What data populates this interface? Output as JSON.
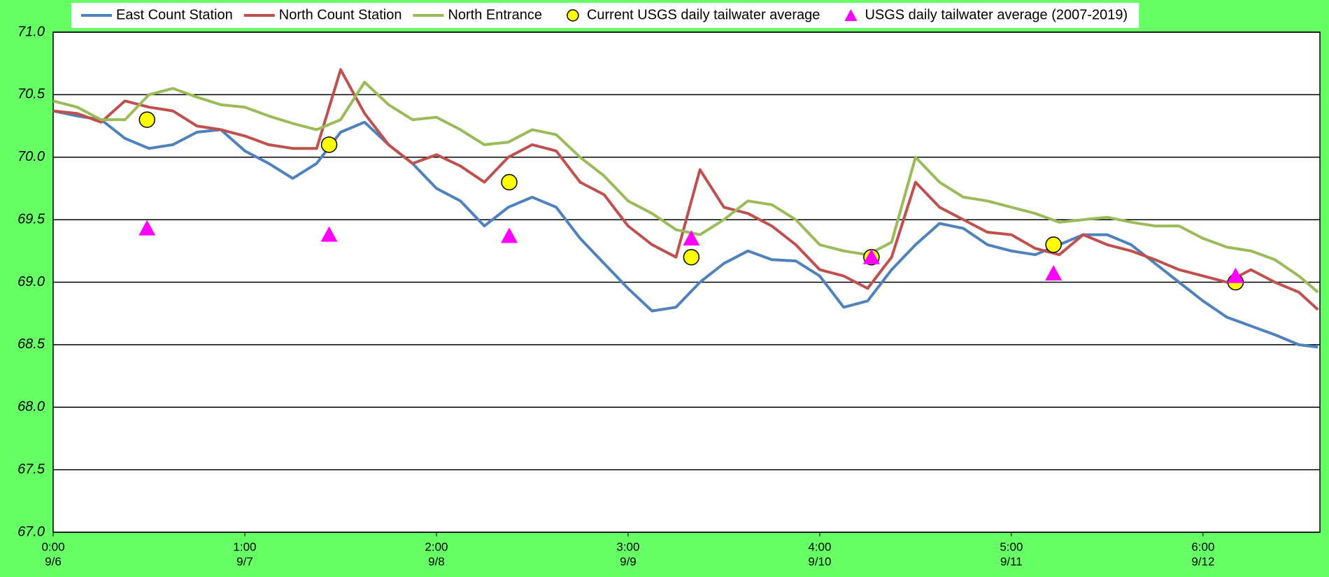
{
  "chart_data": {
    "type": "line",
    "x": [
      0,
      0.125,
      0.25,
      0.375,
      0.5,
      0.625,
      0.75,
      0.875,
      1,
      1.125,
      1.25,
      1.375,
      1.5,
      1.625,
      1.75,
      1.875,
      2,
      2.125,
      2.25,
      2.375,
      2.5,
      2.625,
      2.75,
      2.875,
      3,
      3.125,
      3.25,
      3.375,
      3.5,
      3.625,
      3.75,
      3.875,
      4,
      4.125,
      4.25,
      4.375,
      4.5,
      4.625,
      4.75,
      4.875,
      5,
      5.125,
      5.25,
      5.375,
      5.5,
      5.625,
      5.75,
      5.875,
      6,
      6.125,
      6.25,
      6.375,
      6.5,
      6.6
    ],
    "series": [
      {
        "name": "East Count Station",
        "color": "#4f81bd",
        "values": [
          70.37,
          70.33,
          70.3,
          70.15,
          70.07,
          70.1,
          70.2,
          70.22,
          70.05,
          69.95,
          69.83,
          69.95,
          70.2,
          70.28,
          70.1,
          69.95,
          69.75,
          69.65,
          69.45,
          69.6,
          69.68,
          69.6,
          69.35,
          69.15,
          68.95,
          68.77,
          68.8,
          69.0,
          69.15,
          69.25,
          69.18,
          69.17,
          69.05,
          68.8,
          68.85,
          69.1,
          69.3,
          69.47,
          69.43,
          69.3,
          69.25,
          69.22,
          69.3,
          69.38,
          69.38,
          69.3,
          69.15,
          69.0,
          68.85,
          68.72,
          68.65,
          68.58,
          68.5,
          68.48
        ]
      },
      {
        "name": "North Count Station",
        "color": "#c0504d",
        "values": [
          70.37,
          70.35,
          70.28,
          70.45,
          70.4,
          70.37,
          70.25,
          70.22,
          70.17,
          70.1,
          70.07,
          70.07,
          70.7,
          70.35,
          70.1,
          69.95,
          70.02,
          69.93,
          69.8,
          70.0,
          70.1,
          70.05,
          69.8,
          69.7,
          69.45,
          69.3,
          69.2,
          69.9,
          69.6,
          69.55,
          69.45,
          69.3,
          69.1,
          69.05,
          68.95,
          69.2,
          69.8,
          69.6,
          69.5,
          69.4,
          69.38,
          69.27,
          69.22,
          69.38,
          69.3,
          69.25,
          69.18,
          69.1,
          69.05,
          69.0,
          69.1,
          69.0,
          68.92,
          68.78
        ]
      },
      {
        "name": "North Entrance",
        "color": "#9bbb59",
        "values": [
          70.45,
          70.4,
          70.3,
          70.3,
          70.5,
          70.55,
          70.48,
          70.42,
          70.4,
          70.33,
          70.27,
          70.22,
          70.3,
          70.6,
          70.42,
          70.3,
          70.32,
          70.22,
          70.1,
          70.12,
          70.22,
          70.18,
          70.0,
          69.85,
          69.65,
          69.55,
          69.42,
          69.38,
          69.5,
          69.65,
          69.62,
          69.5,
          69.3,
          69.25,
          69.22,
          69.32,
          70.0,
          69.8,
          69.68,
          69.65,
          69.6,
          69.55,
          69.48,
          69.5,
          69.52,
          69.48,
          69.45,
          69.45,
          69.35,
          69.28,
          69.25,
          69.18,
          69.05,
          68.92
        ]
      },
      {
        "name": "Current USGS daily tailwater average",
        "type": "scatter",
        "marker": "circle",
        "color": "#ffff00",
        "x": [
          0.49,
          1.44,
          2.38,
          3.33,
          4.27,
          5.22,
          6.17
        ],
        "values": [
          70.3,
          70.1,
          69.8,
          69.2,
          69.2,
          69.3,
          69.0
        ]
      },
      {
        "name": "USGS daily tailwater average (2007-2019)",
        "type": "scatter",
        "marker": "triangle",
        "color": "#ff00ff",
        "x": [
          0.49,
          1.44,
          2.38,
          3.33,
          4.27,
          5.22,
          6.17
        ],
        "values": [
          69.43,
          69.38,
          69.37,
          69.35,
          69.2,
          69.07,
          69.05
        ]
      }
    ],
    "xlim": [
      0,
      6.61
    ],
    "xticks": [
      {
        "value": 0,
        "label": [
          "0:00",
          "9/6"
        ]
      },
      {
        "value": 1,
        "label": [
          "1:00",
          "9/7"
        ]
      },
      {
        "value": 2,
        "label": [
          "2:00",
          "9/8"
        ]
      },
      {
        "value": 3,
        "label": [
          "3:00",
          "9/9"
        ]
      },
      {
        "value": 4,
        "label": [
          "4:00",
          "9/10"
        ]
      },
      {
        "value": 5,
        "label": [
          "5:00",
          "9/11"
        ]
      },
      {
        "value": 6,
        "label": [
          "6:00",
          "9/12"
        ]
      }
    ],
    "ylim": [
      67,
      71
    ],
    "yticks": [
      {
        "value": 67,
        "label": "67.0"
      },
      67.5,
      {
        "value": 68,
        "label": "68.0"
      },
      68.5,
      {
        "value": 69,
        "label": "69.0"
      },
      69.5,
      {
        "value": 70,
        "label": "70.0"
      },
      70.5,
      {
        "value": 71,
        "label": "71.0"
      }
    ],
    "grid": true,
    "legend": "top"
  }
}
